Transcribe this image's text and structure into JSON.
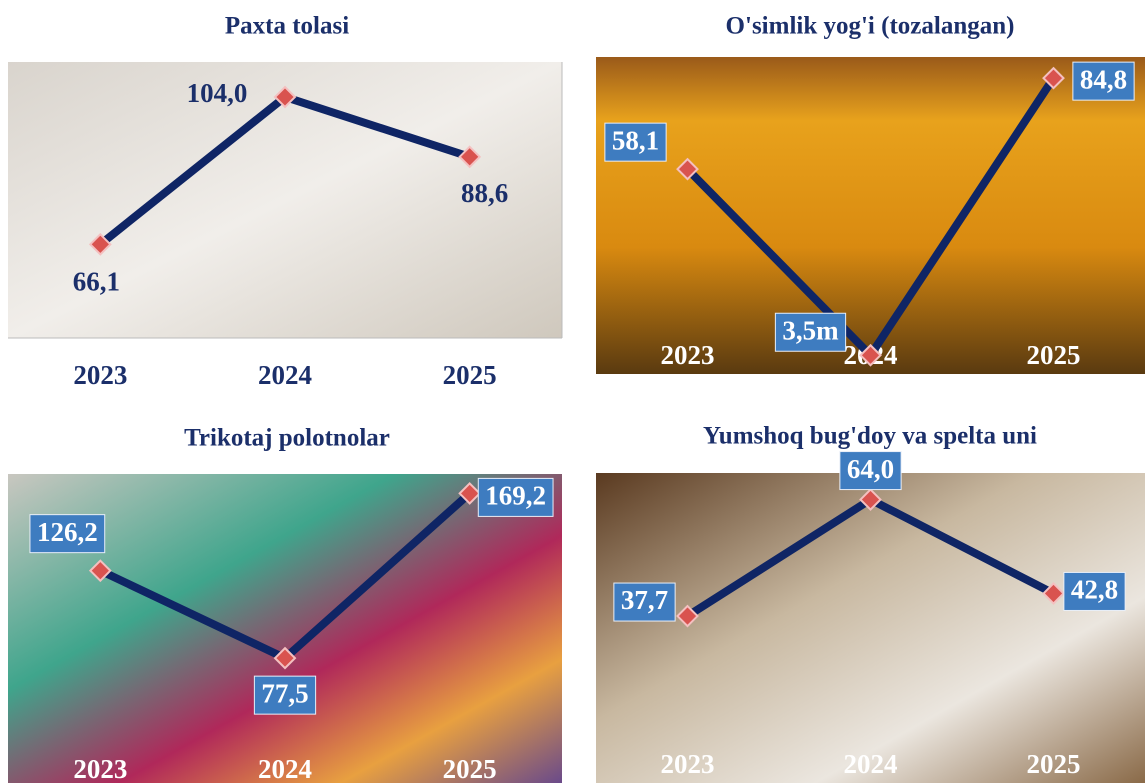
{
  "chart_data": [
    {
      "type": "line",
      "title": "Paxta tolasi",
      "categories": [
        "2023",
        "2024",
        "2025"
      ],
      "values": [
        66.1,
        104.0,
        88.6
      ],
      "value_labels": [
        "66,1",
        "104,0",
        "88,6"
      ],
      "ylim": [
        42,
        113
      ],
      "color": "#0f2565"
    },
    {
      "type": "line",
      "title": "O'simlik yog'i  (tozalangan)",
      "categories": [
        "2023",
        "2024",
        "2025"
      ],
      "values": [
        58.1,
        3.5,
        84.8
      ],
      "value_labels": [
        "58,1",
        "3,5m",
        "84,8"
      ],
      "ylim": [
        -2,
        91
      ],
      "color": "#0f2565"
    },
    {
      "type": "line",
      "title": "Trikotaj polotnolar",
      "categories": [
        "2023",
        "2024",
        "2025"
      ],
      "values": [
        126.2,
        77.5,
        169.2
      ],
      "value_labels": [
        "126,2",
        "77,5",
        "169,2"
      ],
      "ylim": [
        8,
        180
      ],
      "color": "#0f2565"
    },
    {
      "type": "line",
      "title": "Yumshoq bug'doy va spelta uni",
      "categories": [
        "2023",
        "2024",
        "2025"
      ],
      "values": [
        37.7,
        64.0,
        42.8
      ],
      "value_labels": [
        "37,7",
        "64,0",
        "42,8"
      ],
      "ylim": [
        0,
        70
      ],
      "color": "#0f2565"
    }
  ]
}
